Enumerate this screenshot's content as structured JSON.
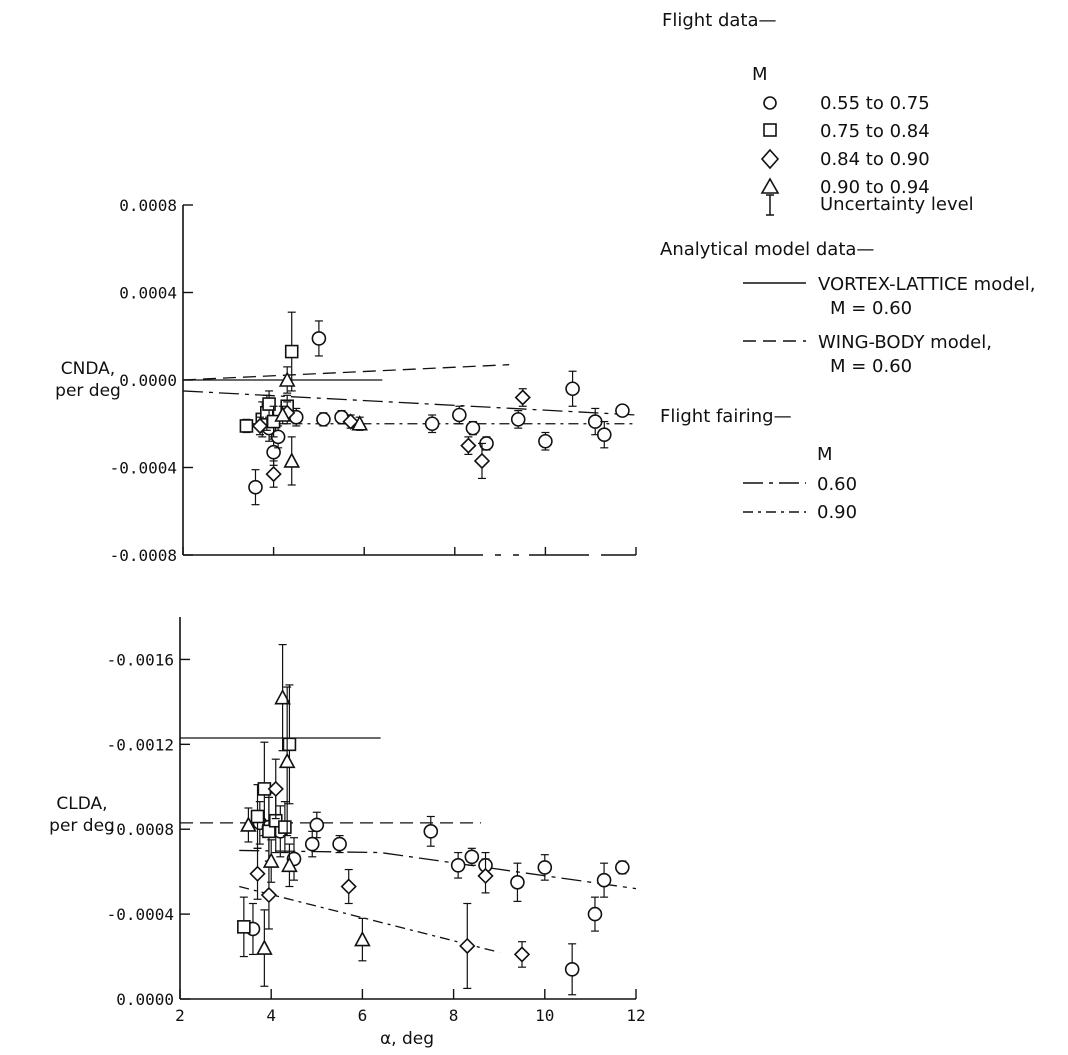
{
  "chart_data": [
    {
      "type": "scatter",
      "ylabel_lines": [
        "CNDA,",
        "per deg"
      ],
      "xlim": [
        2,
        12
      ],
      "ylim": [
        -0.0008,
        0.0008
      ],
      "yticks": [
        0.0008,
        0.0004,
        0.0,
        -0.0004,
        -0.0008
      ],
      "ytick_labels": [
        "0.0008",
        "0.0004",
        "0.0000",
        "-0.0004",
        "-0.0008"
      ],
      "series": [
        {
          "name": "0.55 to 0.75",
          "marker": "circle",
          "points": [
            [
              3.6,
              -0.00049,
              8e-05
            ],
            [
              3.9,
              -0.00022,
              6e-05
            ],
            [
              4.0,
              -0.00033,
              6e-05
            ],
            [
              4.1,
              -0.00026,
              5e-05
            ],
            [
              4.5,
              -0.00017,
              4e-05
            ],
            [
              5.0,
              0.00019,
              8e-05
            ],
            [
              5.1,
              -0.00018,
              3e-05
            ],
            [
              5.5,
              -0.00017,
              3e-05
            ],
            [
              7.5,
              -0.0002,
              4e-05
            ],
            [
              8.1,
              -0.00016,
              4e-05
            ],
            [
              8.4,
              -0.00022,
              3e-05
            ],
            [
              8.7,
              -0.00029,
              3e-05
            ],
            [
              9.4,
              -0.00018,
              4e-05
            ],
            [
              10.0,
              -0.00028,
              4e-05
            ],
            [
              10.6,
              -4e-05,
              8e-05
            ],
            [
              11.1,
              -0.00019,
              6e-05
            ],
            [
              11.3,
              -0.00025,
              6e-05
            ],
            [
              11.7,
              -0.00014,
              2e-05
            ]
          ]
        },
        {
          "name": "0.75 to 0.84",
          "marker": "square",
          "points": [
            [
              3.4,
              -0.00021,
              3e-05
            ],
            [
              3.75,
              -0.00018,
              8e-05
            ],
            [
              3.85,
              -0.00015,
              8e-05
            ],
            [
              3.9,
              -0.00011,
              6e-05
            ],
            [
              4.0,
              -0.00019,
              7e-05
            ],
            [
              4.3,
              -0.00012,
              5e-05
            ],
            [
              4.4,
              0.00013,
              0.00018
            ]
          ]
        },
        {
          "name": "0.84 to 0.90",
          "marker": "diamond",
          "points": [
            [
              3.7,
              -0.00021,
              4e-05
            ],
            [
              4.0,
              -0.00043,
              6e-05
            ],
            [
              4.3,
              -0.00015,
              5e-05
            ],
            [
              5.7,
              -0.00019,
              3e-05
            ],
            [
              8.3,
              -0.0003,
              4e-05
            ],
            [
              8.6,
              -0.00037,
              8e-05
            ],
            [
              9.5,
              -8e-05,
              4e-05
            ]
          ]
        },
        {
          "name": "0.90 to 0.94",
          "marker": "triangle",
          "points": [
            [
              4.2,
              -0.00016,
              4e-05
            ],
            [
              4.3,
              0.0,
              6e-05
            ],
            [
              4.4,
              -0.00037,
              0.00011
            ],
            [
              5.9,
              -0.0002,
              3e-05
            ]
          ]
        }
      ],
      "model_lines": [
        {
          "name": "VORTEX-LATTICE model, M = 0.60",
          "style": "solid",
          "x": [
            2,
            6.4
          ],
          "y": [
            0.0,
            0.0
          ]
        },
        {
          "name": "WING-BODY model, M = 0.60",
          "style": "dashed",
          "x": [
            2,
            9.2
          ],
          "y": [
            0.0,
            7e-05
          ]
        }
      ],
      "fairing_lines": [
        {
          "name": "0.60",
          "style": "longdash",
          "x": [
            2,
            12
          ],
          "y": [
            -5e-05,
            -0.00016
          ]
        },
        {
          "name": "0.90",
          "style": "dashdot",
          "x": [
            3.4,
            12
          ],
          "y": [
            -0.0002,
            -0.0002
          ]
        }
      ]
    },
    {
      "type": "scatter",
      "ylabel_lines": [
        "CLDA,",
        "per deg"
      ],
      "xlabel": "α, deg",
      "xlim": [
        2,
        12
      ],
      "ylim": [
        0.0,
        -0.0018
      ],
      "xticks": [
        2,
        4,
        6,
        8,
        10,
        12
      ],
      "xtick_labels": [
        "2",
        "4",
        "6",
        "8",
        "10",
        "12"
      ],
      "yticks": [
        -0.0016,
        -0.0012,
        -0.0008,
        -0.0004,
        0.0
      ],
      "ytick_labels": [
        "-0.0016",
        "-0.0012",
        "-0.0008",
        "-0.0004",
        "0.0000"
      ],
      "series": [
        {
          "name": "0.55 to 0.75",
          "marker": "circle",
          "points": [
            [
              3.6,
              -0.00033,
              0.00012
            ],
            [
              3.75,
              -0.00083,
              0.0001
            ],
            [
              3.95,
              -0.00081,
              0.00016
            ],
            [
              4.2,
              -0.00079,
              0.00012
            ],
            [
              4.5,
              -0.00066,
              0.0001
            ],
            [
              4.9,
              -0.00073,
              6e-05
            ],
            [
              5.0,
              -0.00082,
              6e-05
            ],
            [
              5.5,
              -0.00073,
              4e-05
            ],
            [
              7.5,
              -0.00079,
              7e-05
            ],
            [
              8.1,
              -0.00063,
              6e-05
            ],
            [
              8.4,
              -0.00067,
              4e-05
            ],
            [
              8.7,
              -0.00063,
              6e-05
            ],
            [
              9.4,
              -0.00055,
              9e-05
            ],
            [
              10.0,
              -0.00062,
              6e-05
            ],
            [
              10.6,
              -0.00014,
              0.00012
            ],
            [
              11.1,
              -0.0004,
              8e-05
            ],
            [
              11.3,
              -0.00056,
              8e-05
            ],
            [
              11.7,
              -0.00062,
              3e-05
            ]
          ]
        },
        {
          "name": "0.75 to 0.84",
          "marker": "square",
          "points": [
            [
              3.4,
              -0.00034,
              0.00014
            ],
            [
              3.7,
              -0.00086,
              0.00015
            ],
            [
              3.85,
              -0.00099,
              0.00022
            ],
            [
              3.95,
              -0.00079,
              0.00016
            ],
            [
              4.1,
              -0.00084,
              0.00015
            ],
            [
              4.3,
              -0.00081,
              0.00012
            ],
            [
              4.4,
              -0.0012,
              0.00028
            ]
          ]
        },
        {
          "name": "0.84 to 0.90",
          "marker": "diamond",
          "points": [
            [
              3.7,
              -0.00059,
              0.00012
            ],
            [
              3.95,
              -0.00049,
              0.00016
            ],
            [
              4.1,
              -0.00099,
              0.00014
            ],
            [
              5.7,
              -0.00053,
              8e-05
            ],
            [
              8.3,
              -0.00025,
              0.0002
            ],
            [
              8.7,
              -0.00058,
              8e-05
            ],
            [
              9.5,
              -0.00021,
              6e-05
            ]
          ]
        },
        {
          "name": "0.90 to 0.94",
          "marker": "triangle",
          "points": [
            [
              3.5,
              -0.00082,
              8e-05
            ],
            [
              3.85,
              -0.00024,
              0.00018
            ],
            [
              4.0,
              -0.00065,
              0.0001
            ],
            [
              4.25,
              -0.00142,
              0.00025
            ],
            [
              4.35,
              -0.00112,
              0.00035
            ],
            [
              4.4,
              -0.00063,
              0.0001
            ],
            [
              6.0,
              -0.00028,
              0.0001
            ]
          ]
        }
      ],
      "model_lines": [
        {
          "name": "VORTEX-LATTICE model, M = 0.60",
          "style": "solid",
          "x": [
            2,
            6.4
          ],
          "y": [
            -0.00123,
            -0.00123
          ]
        },
        {
          "name": "WING-BODY model, M = 0.60",
          "style": "dashed",
          "x": [
            2,
            8.6
          ],
          "y": [
            -0.00083,
            -0.00083
          ]
        }
      ],
      "fairing_lines": [
        {
          "name": "0.60",
          "style": "longdash",
          "x": [
            3.3,
            6.4,
            12
          ],
          "y": [
            -0.0007,
            -0.00069,
            -0.00052
          ]
        },
        {
          "name": "0.90",
          "style": "dashdot",
          "x": [
            3.3,
            9.0
          ],
          "y": [
            -0.00053,
            -0.00022
          ]
        }
      ]
    }
  ],
  "legend": {
    "flight_title": "Flight data—",
    "m_header": "M",
    "flight_items": [
      {
        "marker": "circle",
        "label": "0.55 to 0.75"
      },
      {
        "marker": "square",
        "label": "0.75 to 0.84"
      },
      {
        "marker": "diamond",
        "label": "0.84 to 0.90"
      },
      {
        "marker": "triangle",
        "label": "0.90 to 0.94"
      },
      {
        "marker": "errorbar",
        "label": "Uncertainty level"
      }
    ],
    "model_title": "Analytical model data—",
    "model_items": [
      {
        "style": "solid",
        "line1": "VORTEX-LATTICE model,",
        "line2": "M = 0.60"
      },
      {
        "style": "dashed",
        "line1": "WING-BODY model,",
        "line2": "M = 0.60"
      }
    ],
    "fairing_title": "Flight fairing—",
    "fairing_m_header": "M",
    "fairing_items": [
      {
        "style": "longdash",
        "label": "0.60"
      },
      {
        "style": "dashdot",
        "label": "0.90"
      }
    ]
  }
}
